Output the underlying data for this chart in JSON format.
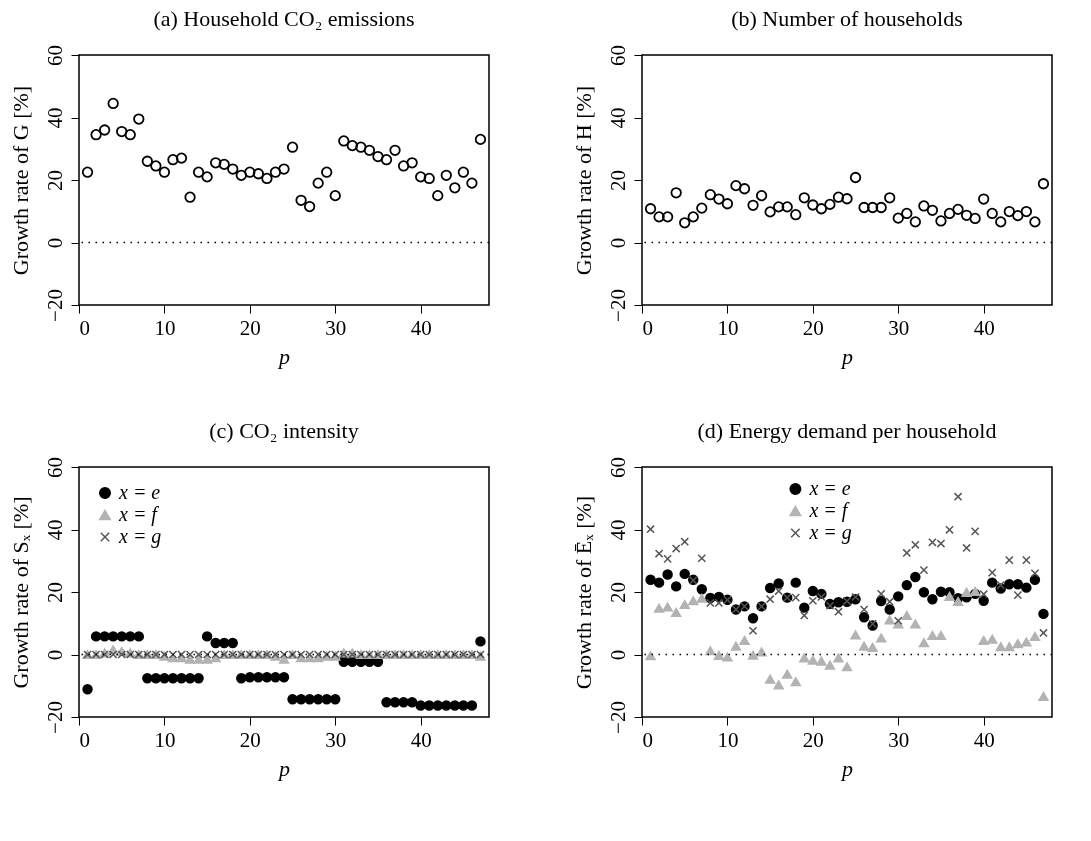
{
  "chart_data": [
    {
      "type": "scatter",
      "title": "(a) Household CO₂ emissions",
      "xlabel": "p",
      "ylabel": "Growth rate of G [%]",
      "x": [
        1,
        2,
        3,
        4,
        5,
        6,
        7,
        8,
        9,
        10,
        11,
        12,
        13,
        14,
        15,
        16,
        17,
        18,
        19,
        20,
        21,
        22,
        23,
        24,
        25,
        26,
        27,
        28,
        29,
        30,
        31,
        32,
        33,
        34,
        35,
        36,
        37,
        38,
        39,
        40,
        41,
        42,
        43,
        44,
        45,
        46,
        47
      ],
      "color": "#000000",
      "marker": "circle",
      "values": [
        22.5,
        34.5,
        36,
        44.5,
        35.5,
        34.5,
        39.5,
        26,
        24.5,
        22.5,
        26.5,
        27,
        14.5,
        22.5,
        21,
        25.5,
        25,
        23.5,
        21.5,
        22.5,
        22,
        20.5,
        22.5,
        23.5,
        30.5,
        13.5,
        11.5,
        19,
        22.5,
        15,
        32.5,
        31,
        30.5,
        29.5,
        27.5,
        26.5,
        29.5,
        24.5,
        25.5,
        21,
        20.5,
        15,
        21.5,
        17.5,
        22.5,
        19,
        33
      ],
      "xlim": [
        0,
        48
      ],
      "xticks": [
        0,
        10,
        20,
        30,
        40
      ],
      "ylim": [
        -20,
        60
      ],
      "yticks": [
        -20,
        0,
        20,
        40,
        60
      ],
      "grid": false,
      "ref_lines": [
        {
          "axis": "y",
          "value": 0,
          "color": "#000000",
          "line_style": "dotted"
        }
      ]
    },
    {
      "type": "scatter",
      "title": "(b) Number of households",
      "xlabel": "p",
      "ylabel": "Growth rate of H [%]",
      "x": [
        1,
        2,
        3,
        4,
        5,
        6,
        7,
        8,
        9,
        10,
        11,
        12,
        13,
        14,
        15,
        16,
        17,
        18,
        19,
        20,
        21,
        22,
        23,
        24,
        25,
        26,
        27,
        28,
        29,
        30,
        31,
        32,
        33,
        34,
        35,
        36,
        37,
        38,
        39,
        40,
        41,
        42,
        43,
        44,
        45,
        46,
        47
      ],
      "color": "#000000",
      "marker": "circle",
      "values": [
        10.8,
        8.2,
        8.2,
        15.9,
        6.3,
        8.2,
        11,
        15.3,
        13.9,
        12.4,
        18.2,
        17.2,
        11.9,
        15,
        9.8,
        11.4,
        11.4,
        8.9,
        14.3,
        12,
        10.8,
        12.2,
        14.5,
        14,
        20.8,
        11.2,
        11.2,
        11.2,
        14.3,
        7.8,
        9.3,
        6.6,
        11.7,
        10.3,
        6.9,
        9.3,
        10.6,
        8.7,
        7.7,
        13.9,
        9.3,
        6.6,
        9.9,
        8.6,
        9.9,
        6.6,
        18.8
      ],
      "xlim": [
        0,
        48
      ],
      "xticks": [
        0,
        10,
        20,
        30,
        40
      ],
      "ylim": [
        -20,
        60
      ],
      "yticks": [
        -20,
        0,
        20,
        40,
        60
      ],
      "grid": false,
      "ref_lines": [
        {
          "axis": "y",
          "value": 0,
          "color": "#000000",
          "line_style": "dotted"
        }
      ]
    },
    {
      "type": "scatter",
      "title": "(c) CO₂ intensity",
      "xlabel": "p",
      "ylabel": "Growth rate of Sₓ [%]",
      "x": [
        1,
        2,
        3,
        4,
        5,
        6,
        7,
        8,
        9,
        10,
        11,
        12,
        13,
        14,
        15,
        16,
        17,
        18,
        19,
        20,
        21,
        22,
        23,
        24,
        25,
        26,
        27,
        28,
        29,
        30,
        31,
        32,
        33,
        34,
        35,
        36,
        37,
        38,
        39,
        40,
        41,
        42,
        43,
        44,
        45,
        46,
        47
      ],
      "series": [
        {
          "name": "x = e",
          "color": "#000000",
          "marker": "circle",
          "values": [
            -11.1,
            5.8,
            5.8,
            5.8,
            5.8,
            5.8,
            5.8,
            -7.6,
            -7.6,
            -7.6,
            -7.6,
            -7.6,
            -7.6,
            -7.6,
            5.8,
            3.7,
            3.7,
            3.7,
            -7.6,
            -7.3,
            -7.3,
            -7.3,
            -7.3,
            -7.3,
            -14.3,
            -14.3,
            -14.3,
            -14.3,
            -14.3,
            -14.3,
            -2.3,
            -2.3,
            -2.3,
            -2.3,
            -2.3,
            -15.3,
            -15.3,
            -15.3,
            -15.3,
            -16.3,
            -16.3,
            -16.3,
            -16.3,
            -16.3,
            -16.3,
            -16.3,
            4.2
          ]
        },
        {
          "name": "x = f",
          "color": "#b3b3b3",
          "marker": "triangle",
          "values": [
            0,
            0,
            0.5,
            1.5,
            1,
            0.5,
            0,
            0,
            0,
            -0.5,
            -1,
            -1,
            -1.5,
            -1.5,
            -1.5,
            -1,
            0,
            0,
            0,
            0,
            0,
            0,
            -0.5,
            -1.5,
            0,
            -1,
            -1,
            -1,
            -0.5,
            -0.5,
            0.5,
            0.5,
            0,
            0,
            0,
            0,
            0,
            0,
            0,
            0,
            0,
            0,
            0,
            0,
            0,
            0,
            -0.5
          ]
        },
        {
          "name": "x = g",
          "color": "#555555",
          "marker": "cross",
          "values": [
            0,
            0,
            0,
            0,
            0,
            0,
            0,
            0,
            0,
            0,
            0,
            0,
            0,
            0,
            0,
            0,
            0,
            0,
            0,
            0,
            0,
            0,
            0,
            0,
            0,
            0,
            0,
            0,
            0,
            0,
            0,
            0,
            0,
            0,
            0,
            0,
            0,
            0,
            0,
            0,
            0,
            0,
            0,
            0,
            0,
            0,
            0
          ]
        }
      ],
      "xlim": [
        0,
        48
      ],
      "xticks": [
        0,
        10,
        20,
        30,
        40
      ],
      "ylim": [
        -20,
        60
      ],
      "yticks": [
        -20,
        0,
        20,
        40,
        60
      ],
      "grid": false,
      "legend": "top left",
      "ref_lines": [
        {
          "axis": "y",
          "value": 0,
          "color": "#000000",
          "line_style": "dotted"
        }
      ]
    },
    {
      "type": "scatter",
      "title": "(d) Energy demand per household",
      "xlabel": "p",
      "ylabel": "Growth rate of Ēₓ [%]",
      "x": [
        1,
        2,
        3,
        4,
        5,
        6,
        7,
        8,
        9,
        10,
        11,
        12,
        13,
        14,
        15,
        16,
        17,
        18,
        19,
        20,
        21,
        22,
        23,
        24,
        25,
        26,
        27,
        28,
        29,
        30,
        31,
        32,
        33,
        34,
        35,
        36,
        37,
        38,
        39,
        40,
        41,
        42,
        43,
        44,
        45,
        46,
        47
      ],
      "series": [
        {
          "name": "x = e",
          "color": "#000000",
          "marker": "circle",
          "values": [
            23.9,
            23,
            25.6,
            21.8,
            25.8,
            23.9,
            20.9,
            18.1,
            18.4,
            17.5,
            14.4,
            15.4,
            11.6,
            15.4,
            21.3,
            22.7,
            18.2,
            23,
            15,
            20.3,
            19.4,
            16.2,
            16.7,
            16.9,
            17.7,
            11.9,
            9.3,
            17.1,
            14.4,
            18.6,
            22.2,
            24.8,
            19.9,
            17.7,
            20.1,
            19.9,
            18,
            18.3,
            19.4,
            17.2,
            23,
            21.1,
            22.5,
            22.5,
            21.4,
            23.9,
            13
          ]
        },
        {
          "name": "x = f",
          "color": "#b3b3b3",
          "marker": "triangle",
          "values": [
            -0.4,
            14.8,
            15.2,
            13.5,
            16,
            17.2,
            18,
            1.2,
            -0.3,
            -0.8,
            2.7,
            4.5,
            -0.2,
            0.8,
            -7.9,
            -9.7,
            -6.3,
            -8.7,
            -1.1,
            -1.8,
            -2.1,
            -3.4,
            -1.1,
            -3.9,
            6.3,
            2.7,
            2.3,
            5.3,
            11.1,
            9.8,
            12.5,
            9.8,
            3.8,
            6.1,
            6.1,
            18.6,
            17,
            19.9,
            20.2,
            4.5,
            4.9,
            2.5,
            2.5,
            3.5,
            4,
            5.8,
            -13.4
          ]
        },
        {
          "name": "x = g",
          "color": "#555555",
          "marker": "cross",
          "values": [
            40.1,
            32.3,
            30.6,
            33.9,
            36.1,
            23.7,
            30.8,
            16.5,
            16.5,
            17.5,
            14.4,
            15.4,
            7.6,
            15.4,
            17.7,
            20.3,
            18.2,
            18.2,
            12.5,
            17.2,
            18.4,
            15.6,
            13.7,
            17.1,
            18.4,
            14.4,
            9.8,
            19.4,
            16.9,
            10.8,
            32.5,
            35.1,
            27,
            35.9,
            35.5,
            39.9,
            50.5,
            34.1,
            39.4,
            19.3,
            26.2,
            22.2,
            30.2,
            19,
            30.2,
            26,
            6.9
          ]
        }
      ],
      "xlim": [
        0,
        48
      ],
      "xticks": [
        0,
        10,
        20,
        30,
        40
      ],
      "ylim": [
        -20,
        60
      ],
      "yticks": [
        -20,
        0,
        20,
        40,
        60
      ],
      "grid": false,
      "legend": "top",
      "ref_lines": [
        {
          "axis": "y",
          "value": 0,
          "color": "#000000",
          "line_style": "dotted"
        }
      ]
    }
  ]
}
